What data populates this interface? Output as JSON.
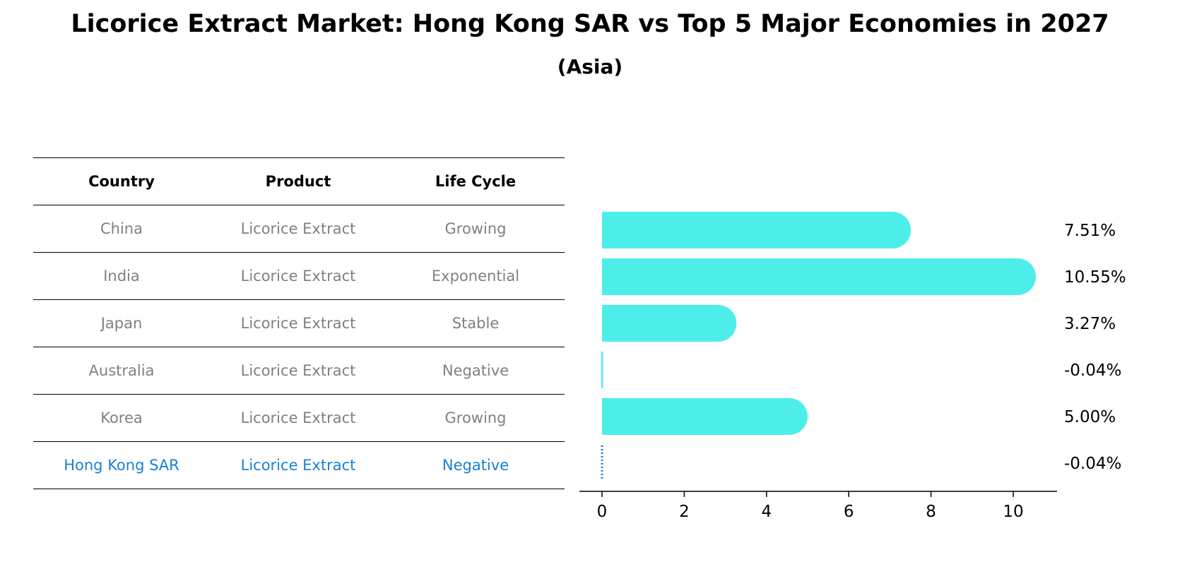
{
  "title": "Licorice Extract Market: Hong Kong SAR vs Top 5 Major Economies in 2027",
  "subtitle": "(Asia)",
  "table": {
    "headers": [
      "Country",
      "Product",
      "Life Cycle"
    ],
    "rows": [
      {
        "country": "China",
        "product": "Licorice Extract",
        "life_cycle": "Growing"
      },
      {
        "country": "India",
        "product": "Licorice Extract",
        "life_cycle": "Exponential"
      },
      {
        "country": "Japan",
        "product": "Licorice Extract",
        "life_cycle": "Stable"
      },
      {
        "country": "Australia",
        "product": "Licorice Extract",
        "life_cycle": "Negative"
      },
      {
        "country": "Korea",
        "product": "Licorice Extract",
        "life_cycle": "Growing"
      },
      {
        "country": "Hong Kong SAR",
        "product": "Licorice Extract",
        "life_cycle": "Negative"
      }
    ]
  },
  "colors": {
    "bar": "#4deeea",
    "highlight": "#1a7fd4",
    "muted_text": "#808080"
  },
  "chart_data": {
    "type": "bar",
    "orientation": "horizontal",
    "categories": [
      "China",
      "India",
      "Japan",
      "Australia",
      "Korea",
      "Hong Kong SAR"
    ],
    "values": [
      7.51,
      10.55,
      3.27,
      -0.04,
      5.0,
      -0.04
    ],
    "value_labels": [
      "7.51%",
      "10.55%",
      "3.27%",
      "-0.04%",
      "5.00%",
      "-0.04%"
    ],
    "highlight_index": 5,
    "xlim": [
      -0.55,
      11.05
    ],
    "xticks": [
      0,
      2,
      4,
      6,
      8,
      10
    ],
    "grid": false
  }
}
